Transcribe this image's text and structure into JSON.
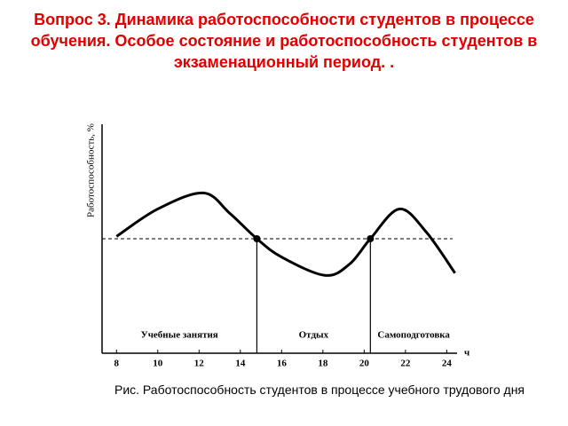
{
  "title": "Вопрос 3. Динамика работоспособности студентов в процессе обучения. Особое состояние и работоспособность студентов в экзаменационный период. .",
  "caption": "Рис. Работоспособность студентов в процессе учебного трудового дня",
  "chart_data": {
    "type": "line",
    "ylabel": "Работоспособность, %",
    "xlabel": "ч",
    "x": [
      8,
      10,
      12.2,
      13.5,
      14.8,
      16,
      18.1,
      19.3,
      20.3,
      21.7,
      23,
      24.4
    ],
    "values": [
      51,
      63,
      70,
      61,
      50,
      42,
      34,
      39,
      50,
      63,
      53,
      35
    ],
    "color": "#000000",
    "xlim": [
      7.3,
      24.5
    ],
    "ylim": [
      0,
      100
    ],
    "xticks": [
      8,
      10,
      12,
      14,
      16,
      18,
      20,
      22,
      24
    ],
    "reference": 50,
    "dividers": [
      14.8,
      20.3
    ],
    "regions": [
      "Учебные занятия",
      "Отдых",
      "Самоподготовка"
    ]
  }
}
